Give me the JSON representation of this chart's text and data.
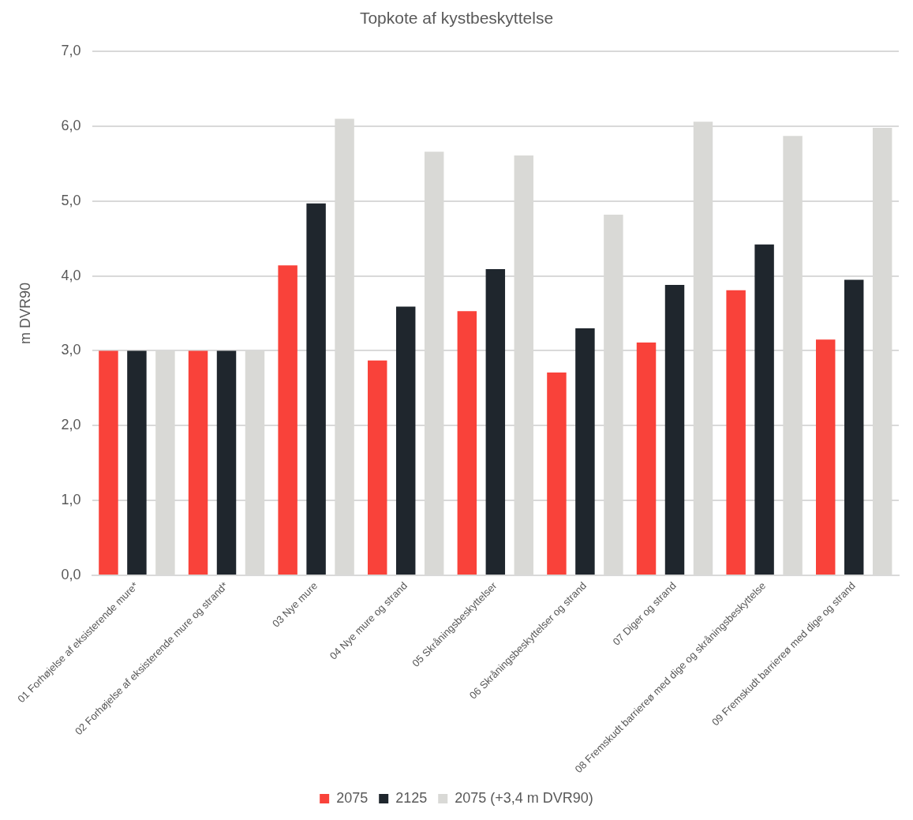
{
  "chart_data": {
    "type": "bar",
    "title": "Topkote af kystbeskyttelse",
    "ylabel": "m DVR90",
    "categories": [
      "01 Forhøjelse af eksisterende mure*",
      "02 Forhøjelse af eksisterende mure og strand*",
      "03 Nye mure",
      "04 Nye mure og strand",
      "05 Skråningsbeskyttelser",
      "06 Skråningsbeskyttelser og strand",
      "07 Diger og strand",
      "08 Fremskudt barriereø med dige og skråningsbeskyttelse",
      "09 Fremskudt barriereø med dige og strand"
    ],
    "series": [
      {
        "name": "2075",
        "color": "#f9423a",
        "values": [
          3.0,
          3.0,
          4.14,
          2.87,
          3.53,
          2.71,
          3.11,
          3.81,
          3.15
        ]
      },
      {
        "name": "2125",
        "color": "#1f262d",
        "values": [
          3.0,
          3.0,
          4.97,
          3.59,
          4.09,
          3.3,
          3.88,
          4.42,
          3.95
        ]
      },
      {
        "name": "2075 (+3,4 m DVR90)",
        "color": "#d9d9d6",
        "values": [
          3.0,
          3.0,
          6.1,
          5.66,
          5.61,
          4.82,
          6.06,
          5.87,
          5.98
        ]
      }
    ],
    "ylim": [
      0,
      7
    ],
    "yticks": [
      {
        "value": 0,
        "label": "0,0"
      },
      {
        "value": 1,
        "label": "1,0"
      },
      {
        "value": 2,
        "label": "2,0"
      },
      {
        "value": 3,
        "label": "3,0"
      },
      {
        "value": 4,
        "label": "4,0"
      },
      {
        "value": 5,
        "label": "5,0"
      },
      {
        "value": 6,
        "label": "6,0"
      },
      {
        "value": 7,
        "label": "7,0"
      }
    ],
    "grid": "y",
    "legend": "bottom"
  }
}
